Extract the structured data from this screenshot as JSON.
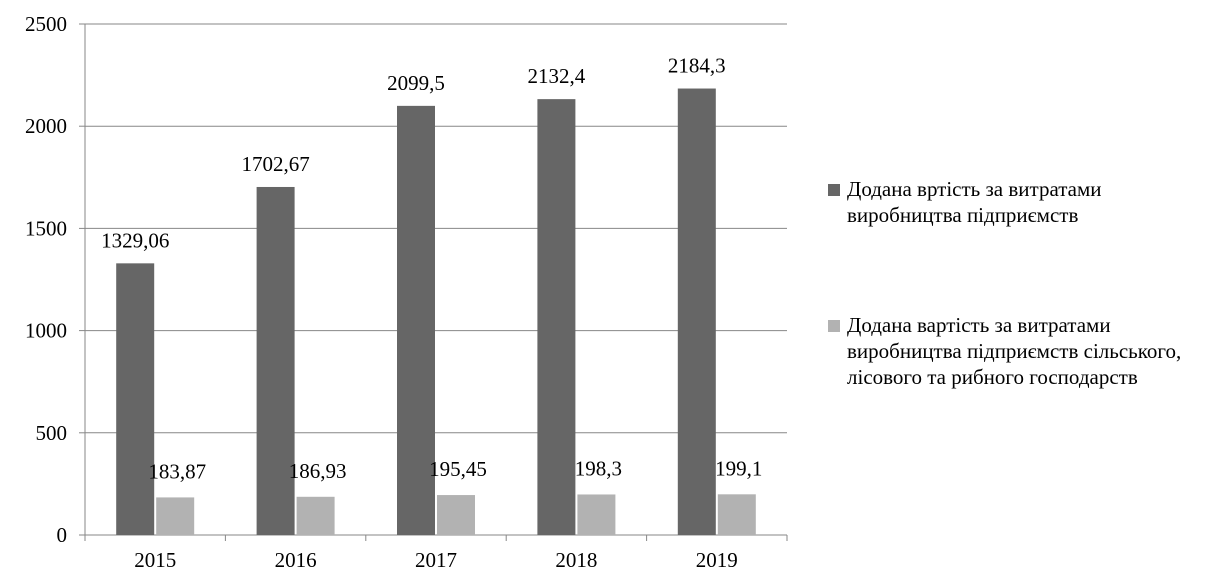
{
  "chart_data": {
    "type": "bar",
    "categories": [
      "2015",
      "2016",
      "2017",
      "2018",
      "2019"
    ],
    "series": [
      {
        "name": "Додана вртість за витратами виробництва підприємств",
        "values": [
          1329.06,
          1702.67,
          2099.5,
          2132.4,
          2184.3
        ],
        "labels": [
          "1329,06",
          "1702,67",
          "2099,5",
          "2132,4",
          "2184,3"
        ],
        "color": "#666666"
      },
      {
        "name": "Додана вартість за витратами виробництва підприємств сільського, лісового та рибного господарств",
        "values": [
          183.87,
          186.93,
          195.45,
          198.3,
          199.1
        ],
        "labels": [
          "183,87",
          "186,93",
          "195,45",
          "198,3",
          "199,1"
        ],
        "color": "#b2b2b2"
      }
    ],
    "y_ticks": [
      "0",
      "500",
      "1000",
      "1500",
      "2000",
      "2500"
    ],
    "ylim": [
      0,
      2500
    ],
    "grid": true,
    "legend_position": "right"
  }
}
